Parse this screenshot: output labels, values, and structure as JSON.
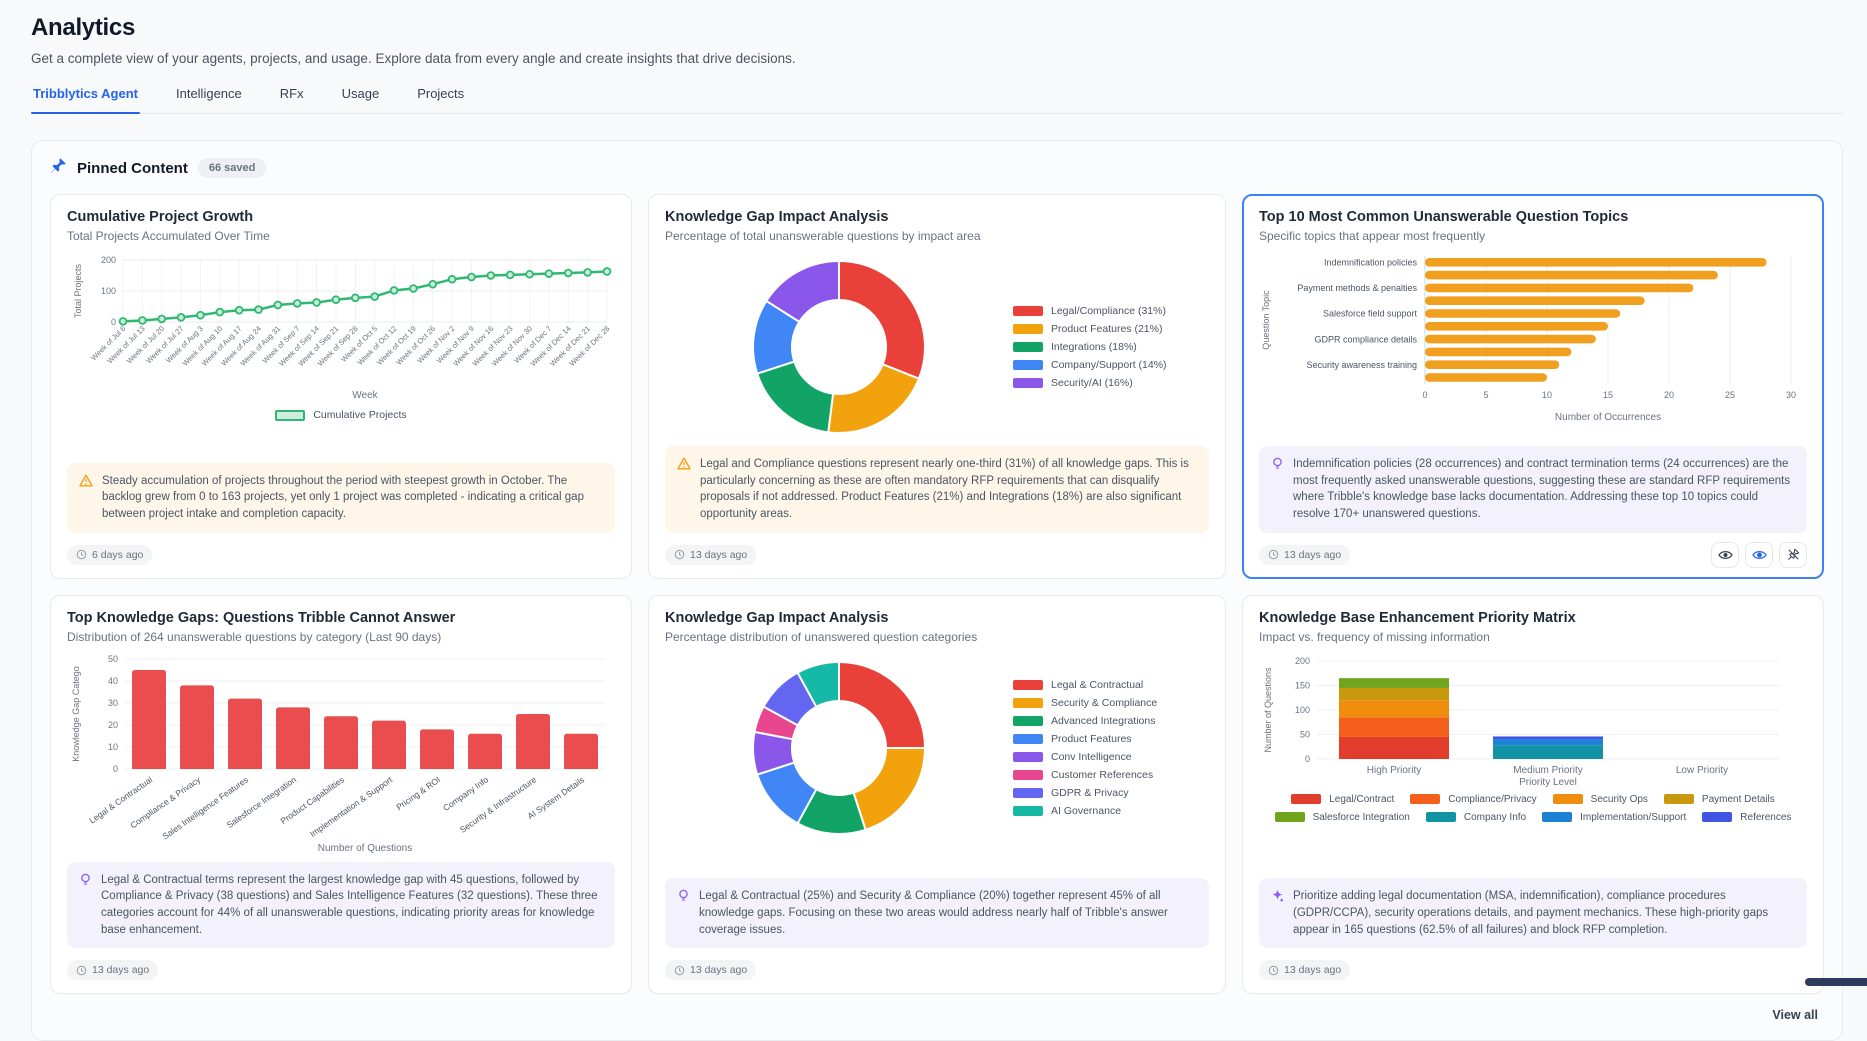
{
  "page": {
    "title": "Analytics",
    "subtitle": "Get a complete view of your agents, projects, and usage. Explore data from every angle and create insights that drive decisions."
  },
  "tabs": [
    {
      "label": "Tribblytics Agent",
      "active": true
    },
    {
      "label": "Intelligence",
      "active": false
    },
    {
      "label": "RFx",
      "active": false
    },
    {
      "label": "Usage",
      "active": false
    },
    {
      "label": "Projects",
      "active": false
    }
  ],
  "pinned": {
    "title": "Pinned Content",
    "badge": "66 saved",
    "view_all": "View all"
  },
  "cards": [
    {
      "title": "Cumulative Project Growth",
      "subtitle": "Total Projects Accumulated Over Time",
      "insight": "Steady accumulation of projects throughout the period with steepest growth in October. The backlog grew from 0 to 163 projects, yet only 1 project was completed - indicating a critical gap between project intake and completion capacity.",
      "time": "6 days ago"
    },
    {
      "title": "Knowledge Gap Impact Analysis",
      "subtitle": "Percentage of total unanswerable questions by impact area",
      "insight": "Legal and Compliance questions represent nearly one-third (31%) of all knowledge gaps. This is particularly concerning as these are often mandatory RFP requirements that can disqualify proposals if not addressed. Product Features (21%) and Integrations (18%) are also significant opportunity areas.",
      "time": "13 days ago"
    },
    {
      "title": "Top 10 Most Common Unanswerable Question Topics",
      "subtitle": "Specific topics that appear most frequently",
      "insight": "Indemnification policies (28 occurrences) and contract termination terms (24 occurrences) are the most frequently asked unanswerable questions, suggesting these are standard RFP requirements where Tribble's knowledge base lacks documentation. Addressing these top 10 topics could resolve 170+ unanswered questions.",
      "time": "13 days ago"
    },
    {
      "title": "Top Knowledge Gaps: Questions Tribble Cannot Answer",
      "subtitle": "Distribution of 264 unanswerable questions by category (Last 90 days)",
      "insight": "Legal & Contractual terms represent the largest knowledge gap with 45 questions, followed by Compliance & Privacy (38 questions) and Sales Intelligence Features (32 questions). These three categories account for 44% of all unanswerable questions, indicating priority areas for knowledge base enhancement.",
      "time": "13 days ago"
    },
    {
      "title": "Knowledge Gap Impact Analysis",
      "subtitle": "Percentage distribution of unanswered question categories",
      "insight": "Legal & Contractual (25%) and Security & Compliance (20%) together represent 45% of all knowledge gaps. Focusing on these two areas would address nearly half of Tribble's answer coverage issues.",
      "time": "13 days ago"
    },
    {
      "title": "Knowledge Base Enhancement Priority Matrix",
      "subtitle": "Impact vs. frequency of missing information",
      "insight": "Prioritize adding legal documentation (MSA, indemnification), compliance procedures (GDPR/CCPA), security operations details, and payment mechanics. These high-priority gaps appear in 165 questions (62.5% of all failures) and block RFP completion.",
      "time": "13 days ago"
    }
  ],
  "chart_data": [
    {
      "type": "line",
      "title": "Cumulative Project Growth",
      "xlabel": "Week",
      "ylabel": "Total Projects",
      "ylim": [
        0,
        200
      ],
      "yticks": [
        0,
        100,
        200
      ],
      "legend": "Cumulative Projects",
      "color": "#2eb872",
      "marker_fill": "#c9ecd9",
      "categories": [
        "Week of Jul 6",
        "Week of Jul 13",
        "Week of Jul 20",
        "Week of Jul 27",
        "Week of Aug 3",
        "Week of Aug 10",
        "Week of Aug 17",
        "Week of Aug 24",
        "Week of Aug 31",
        "Week of Sep 7",
        "Week of Sep 14",
        "Week of Sep 21",
        "Week of Sep 28",
        "Week of Oct 5",
        "Week of Oct 12",
        "Week of Oct 19",
        "Week of Oct 26",
        "Week of Nov 2",
        "Week of Nov 9",
        "Week of Nov 16",
        "Week of Nov 23",
        "Week of Nov 30",
        "Week of Dec 7",
        "Week of Dec 14",
        "Week of Dec 21",
        "Week of Dec 28"
      ],
      "values": [
        2,
        5,
        10,
        15,
        22,
        32,
        38,
        40,
        55,
        60,
        63,
        72,
        78,
        82,
        102,
        108,
        122,
        138,
        145,
        150,
        152,
        154,
        156,
        158,
        160,
        163
      ]
    },
    {
      "type": "pie",
      "title": "Knowledge Gap Impact Analysis",
      "legend_position": "right",
      "segments": [
        {
          "label": "Legal/Compliance (31%)",
          "value": 31,
          "color": "#e9413a"
        },
        {
          "label": "Product Features (21%)",
          "value": 21,
          "color": "#f2a20d"
        },
        {
          "label": "Integrations (18%)",
          "value": 18,
          "color": "#12a466"
        },
        {
          "label": "Company/Support (14%)",
          "value": 14,
          "color": "#4086f4"
        },
        {
          "label": "Security/AI (16%)",
          "value": 16,
          "color": "#8a57ea"
        }
      ]
    },
    {
      "type": "bar",
      "orientation": "horizontal",
      "title": "Top 10 Most Common Unanswerable Question Topics",
      "xlabel": "Number of Occurrences",
      "ylabel": "Question Topic",
      "xlim": [
        0,
        30
      ],
      "xticks": [
        0,
        5,
        10,
        15,
        20,
        25,
        30
      ],
      "color": "#f0a01e",
      "labels": [
        "Indemnification policies",
        "",
        "Payment methods & penalties",
        "",
        "Salesforce field support",
        "",
        "GDPR compliance details",
        "",
        "Security awareness training",
        ""
      ],
      "values": [
        28,
        24,
        22,
        18,
        16,
        15,
        14,
        12,
        11,
        10
      ]
    },
    {
      "type": "bar",
      "orientation": "vertical",
      "title": "Top Knowledge Gaps: Questions Tribble Cannot Answer",
      "xlabel": "Number of Questions",
      "ylabel": "Knowledge Gap Catego",
      "ylim": [
        0,
        50
      ],
      "yticks": [
        0,
        10,
        20,
        30,
        40,
        50
      ],
      "color": "#ea4d4d",
      "categories": [
        "Legal & Contractual",
        "Compliance & Privacy",
        "Sales Intelligence Features",
        "Salesforce Integration",
        "Product Capabilities",
        "Implementation & Support",
        "Pricing & ROI",
        "Company Info",
        "Security & Infrastructure",
        "AI System Details"
      ],
      "values": [
        45,
        38,
        32,
        28,
        24,
        22,
        18,
        16,
        25,
        16
      ]
    },
    {
      "type": "pie",
      "title": "Knowledge Gap Impact Analysis",
      "legend_position": "right",
      "segments": [
        {
          "label": "Legal & Contractual",
          "value": 25,
          "color": "#e9413a"
        },
        {
          "label": "Security & Compliance",
          "value": 20,
          "color": "#f2a20d"
        },
        {
          "label": "Advanced Integrations",
          "value": 13,
          "color": "#12a466"
        },
        {
          "label": "Product Features",
          "value": 12,
          "color": "#4086f4"
        },
        {
          "label": "Conv Intelligence",
          "value": 8,
          "color": "#8a57ea"
        },
        {
          "label": "Customer References",
          "value": 5,
          "color": "#e8468e"
        },
        {
          "label": "GDPR & Privacy",
          "value": 9,
          "color": "#6366f1"
        },
        {
          "label": "AI Governance",
          "value": 8,
          "color": "#16b8a6"
        }
      ]
    },
    {
      "type": "bar",
      "orientation": "stacked",
      "title": "Knowledge Base Enhancement Priority Matrix",
      "xlabel": "Priority Level",
      "ylabel": "Number of Questions",
      "ylim": [
        0,
        200
      ],
      "yticks": [
        0,
        50,
        100,
        150,
        200
      ],
      "categories": [
        "High Priority",
        "Medium Priority",
        "Low Priority"
      ],
      "series": [
        {
          "name": "Legal/Contract",
          "color": "#e23c2d",
          "values": [
            45,
            0,
            0
          ]
        },
        {
          "name": "Compliance/Privacy",
          "color": "#f4601c",
          "values": [
            40,
            0,
            0
          ]
        },
        {
          "name": "Security Ops",
          "color": "#ef8e0e",
          "values": [
            35,
            0,
            0
          ]
        },
        {
          "name": "Payment Details",
          "color": "#c8980f",
          "values": [
            25,
            0,
            0
          ]
        },
        {
          "name": "Salesforce Integration",
          "color": "#6fa41c",
          "values": [
            20,
            0,
            0
          ]
        },
        {
          "name": "Company Info",
          "color": "#1292a5",
          "values": [
            0,
            28,
            0
          ]
        },
        {
          "name": "Implementation/Support",
          "color": "#1b82d6",
          "values": [
            0,
            12,
            0
          ]
        },
        {
          "name": "References",
          "color": "#3f56e4",
          "values": [
            0,
            6,
            0
          ]
        }
      ]
    }
  ]
}
